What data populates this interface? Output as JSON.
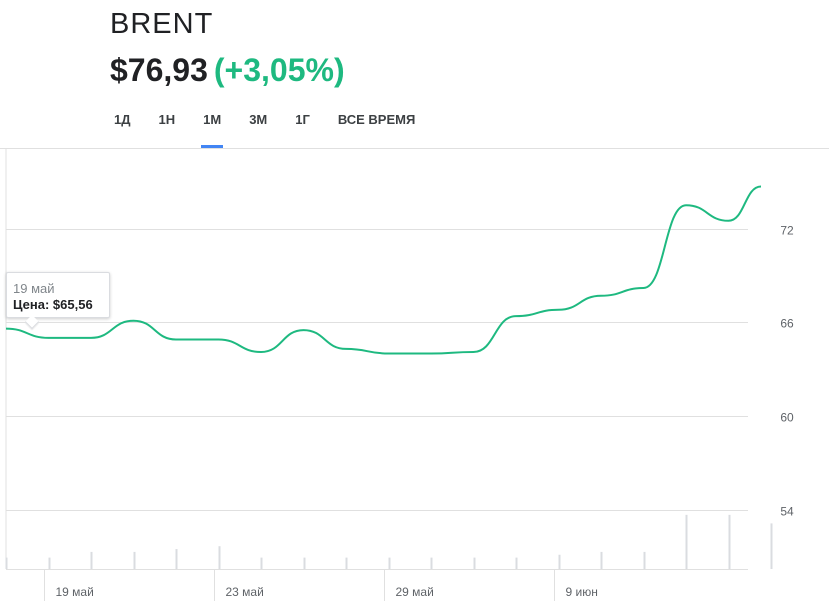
{
  "header": {
    "ticker": "BRENT",
    "price": "$76,93",
    "change": "(+3,05%)"
  },
  "tabs": [
    {
      "label": "1Д",
      "active": false
    },
    {
      "label": "1Н",
      "active": false
    },
    {
      "label": "1М",
      "active": true
    },
    {
      "label": "3М",
      "active": false
    },
    {
      "label": "1Г",
      "active": false
    },
    {
      "label": "ВСЕ ВРЕМЯ",
      "active": false
    }
  ],
  "tooltip": {
    "date": "19 май",
    "value": "Цена: $65,56"
  },
  "colors": {
    "line": "#1eb980",
    "gridline": "#e0e0e0",
    "volume_bar": "#dadce0",
    "active_tab": "#4285f4",
    "change": "#1eb980"
  },
  "chart_data": {
    "type": "line",
    "title": "",
    "xlabel": "",
    "ylabel": "",
    "y_ticks": [
      72,
      66,
      60,
      54
    ],
    "ylim": [
      50.2,
      77.1
    ],
    "x_tick_labels": [
      "19 май",
      "23 май",
      "29 май",
      "9 июн"
    ],
    "x_tick_index": [
      1,
      5,
      9,
      13
    ],
    "grid": true,
    "series": [
      {
        "values": [
          65.6,
          65.0,
          65.0,
          66.1,
          64.9,
          64.9,
          64.1,
          65.5,
          64.3,
          64.0,
          64.0,
          64.1,
          66.4,
          66.8,
          67.7,
          68.2,
          73.5,
          72.5,
          74.7
        ],
        "last_point_partial": true
      }
    ],
    "volume_bars": [
      0.2,
      0.2,
      0.3,
      0.3,
      0.35,
      0.4,
      0.2,
      0.2,
      0.2,
      0.2,
      0.2,
      0.2,
      0.2,
      0.25,
      0.3,
      0.3,
      0.95,
      0.95,
      0.8
    ]
  }
}
